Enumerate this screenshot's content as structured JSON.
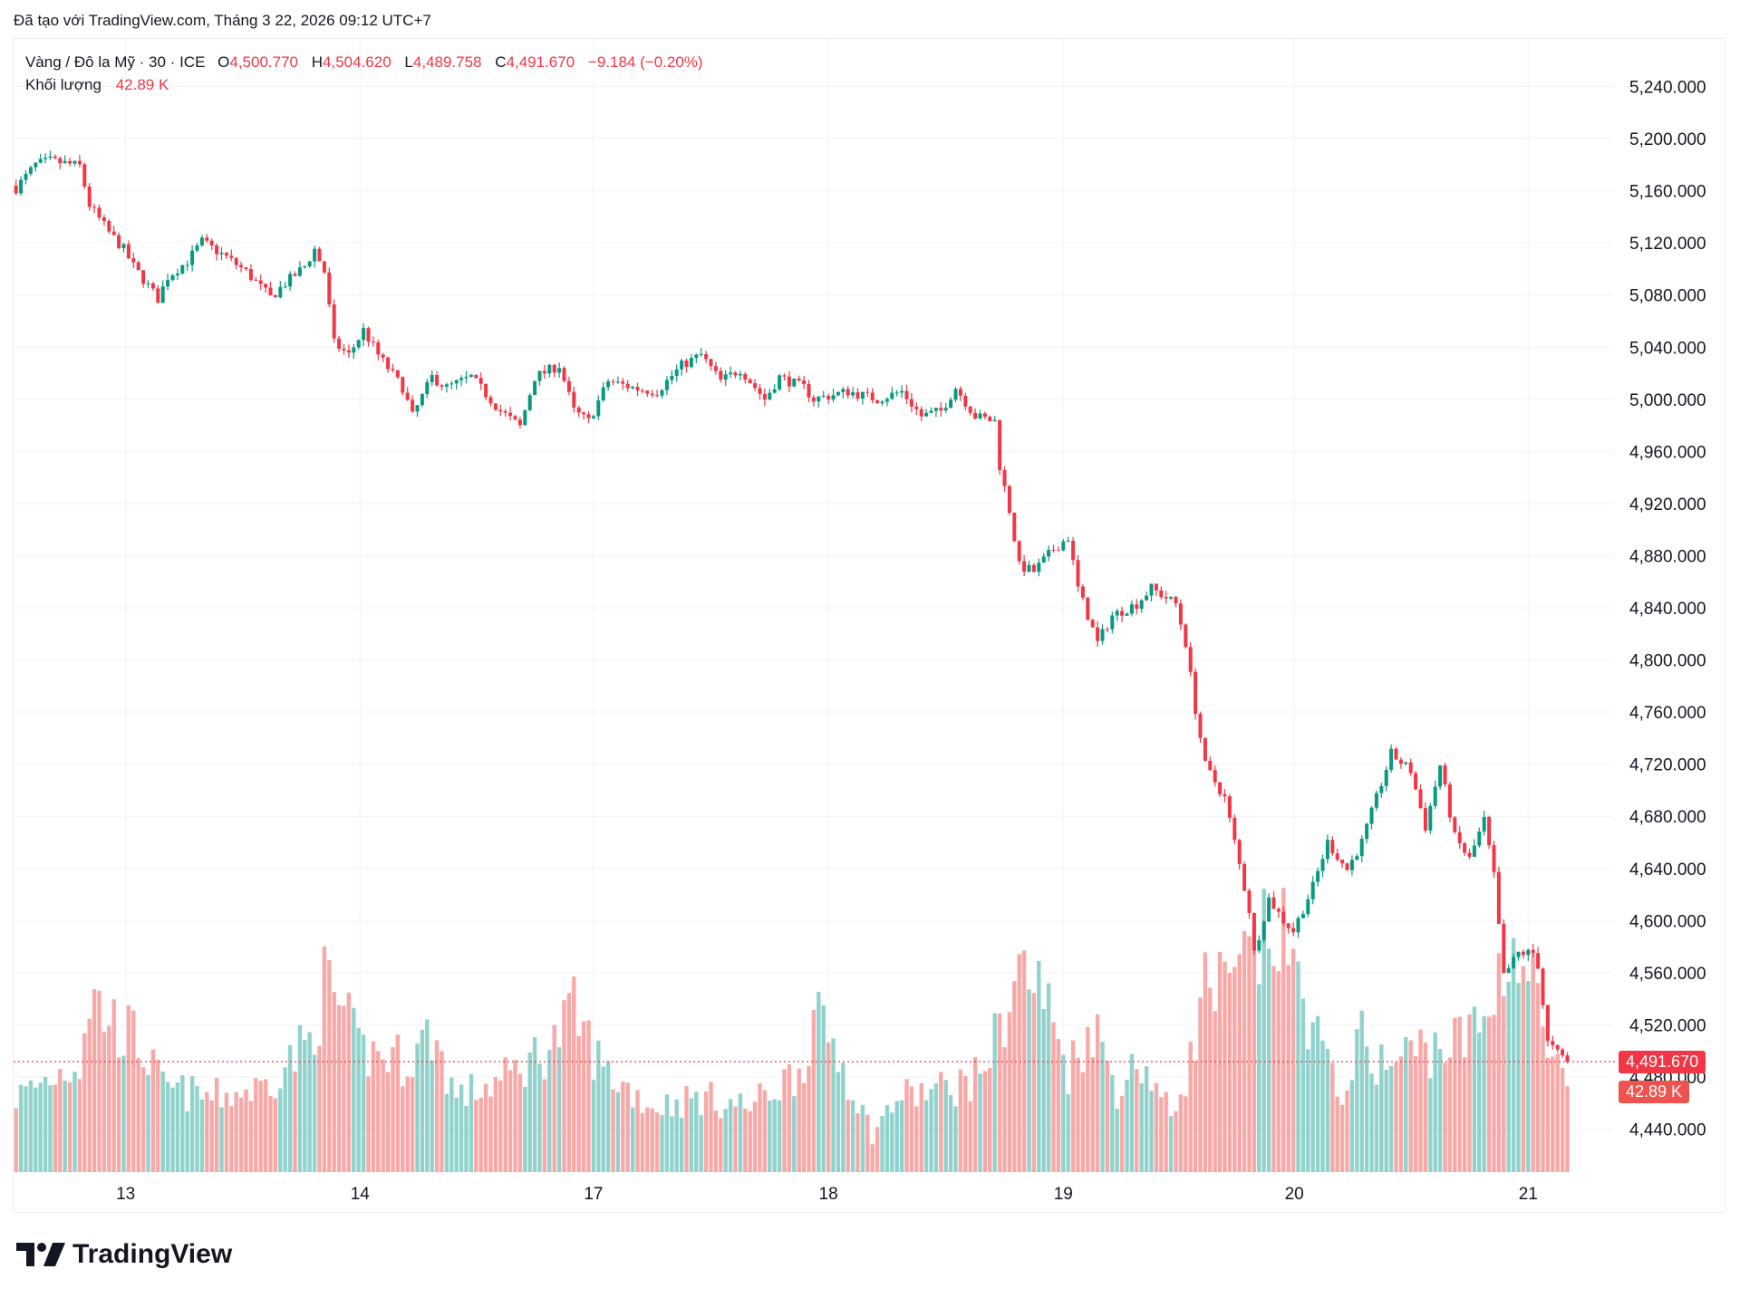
{
  "header": {
    "created": "Đã tạo với TradingView.com, Tháng 3 22, 2026 09:12 UTC+7"
  },
  "legend": {
    "symbol": "Vàng / Đô la Mỹ · 30 · ICE",
    "o_label": "O",
    "o": "4,500.770",
    "h_label": "H",
    "h": "4,504.620",
    "l_label": "L",
    "l": "4,489.758",
    "c_label": "C",
    "c": "4,491.670",
    "change": "−9.184 (−0.20%)",
    "volume_label": "Khối lượng",
    "volume": "42.89 K"
  },
  "price_tag": "4,491.670",
  "volume_tag": "42.89 K",
  "colors": {
    "up": "#089981",
    "down": "#f23645",
    "up_vol": "#92d2cc",
    "down_vol": "#f7a9a7"
  },
  "footer": {
    "brand": "TradingView"
  },
  "chart_data": {
    "type": "candlestick",
    "bar_count": 318,
    "last_close": 4491.67,
    "ylim": [
      4420,
      5260
    ],
    "yticks": [
      4440,
      4480,
      4520,
      4560,
      4600,
      4640,
      4680,
      4720,
      4760,
      4800,
      4840,
      4880,
      4920,
      4960,
      5000,
      5040,
      5080,
      5120,
      5160,
      5200,
      5240
    ],
    "ytick_labels": [
      "4,440.000",
      "4,480.000",
      "4,520.000",
      "4,560.000",
      "4,600.000",
      "4,640.000",
      "4,680.000",
      "4,720.000",
      "4,760.000",
      "4,800.000",
      "4,840.000",
      "4,880.000",
      "4,920.000",
      "4,960.000",
      "5,000.000",
      "5,040.000",
      "5,080.000",
      "5,120.000",
      "5,160.000",
      "5,200.000",
      "5,240.000"
    ],
    "xticks": [
      {
        "bar": 22.4,
        "label": "13"
      },
      {
        "bar": 70.3,
        "label": "14"
      },
      {
        "bar": 118,
        "label": "17"
      },
      {
        "bar": 166,
        "label": "18"
      },
      {
        "bar": 214,
        "label": "19"
      },
      {
        "bar": 261.2,
        "label": "20"
      },
      {
        "bar": 309,
        "label": "21"
      }
    ],
    "close_path": [
      [
        0,
        5162
      ],
      [
        4,
        5180
      ],
      [
        7,
        5183
      ],
      [
        13,
        5179
      ],
      [
        15,
        5149
      ],
      [
        19,
        5128
      ],
      [
        22,
        5115
      ],
      [
        24,
        5102
      ],
      [
        29,
        5077
      ],
      [
        31,
        5094
      ],
      [
        35,
        5106
      ],
      [
        38,
        5121
      ],
      [
        43,
        5109
      ],
      [
        47,
        5098
      ],
      [
        52,
        5078
      ],
      [
        55,
        5089
      ],
      [
        59,
        5102
      ],
      [
        61,
        5115
      ],
      [
        63,
        5098
      ],
      [
        65,
        5043
      ],
      [
        68,
        5034
      ],
      [
        71,
        5053
      ],
      [
        74,
        5034
      ],
      [
        79,
        5009
      ],
      [
        81,
        4987
      ],
      [
        85,
        5017
      ],
      [
        88,
        5009
      ],
      [
        93,
        5017
      ],
      [
        96,
        5004
      ],
      [
        99,
        4991
      ],
      [
        103,
        4979
      ],
      [
        106,
        5017
      ],
      [
        111,
        5026
      ],
      [
        114,
        4991
      ],
      [
        117,
        4983
      ],
      [
        121,
        5014
      ],
      [
        127,
        5008
      ],
      [
        131,
        5006
      ],
      [
        136,
        5026
      ],
      [
        140,
        5034
      ],
      [
        144,
        5014
      ],
      [
        148,
        5023
      ],
      [
        153,
        5000
      ],
      [
        156,
        5017
      ],
      [
        161,
        5009
      ],
      [
        163,
        5000
      ],
      [
        170,
        5006
      ],
      [
        176,
        5000
      ],
      [
        181,
        5006
      ],
      [
        185,
        4987
      ],
      [
        189,
        4991
      ],
      [
        192,
        5009
      ],
      [
        196,
        4987
      ],
      [
        200,
        4983
      ],
      [
        201,
        4949
      ],
      [
        203,
        4915
      ],
      [
        205,
        4872
      ],
      [
        208,
        4868
      ],
      [
        212,
        4885
      ],
      [
        215,
        4894
      ],
      [
        217,
        4855
      ],
      [
        221,
        4813
      ],
      [
        224,
        4834
      ],
      [
        229,
        4843
      ],
      [
        232,
        4855
      ],
      [
        237,
        4843
      ],
      [
        239,
        4813
      ],
      [
        241,
        4762
      ],
      [
        243,
        4719
      ],
      [
        247,
        4694
      ],
      [
        249,
        4660
      ],
      [
        252,
        4608
      ],
      [
        253,
        4575
      ],
      [
        256,
        4617
      ],
      [
        259,
        4600
      ],
      [
        261,
        4592
      ],
      [
        265,
        4626
      ],
      [
        268,
        4660
      ],
      [
        272,
        4639
      ],
      [
        275,
        4660
      ],
      [
        278,
        4694
      ],
      [
        281,
        4728
      ],
      [
        285,
        4715
      ],
      [
        288,
        4672
      ],
      [
        291,
        4719
      ],
      [
        294,
        4664
      ],
      [
        297,
        4647
      ],
      [
        300,
        4677
      ],
      [
        302,
        4634
      ],
      [
        304,
        4557
      ],
      [
        307,
        4575
      ],
      [
        310,
        4575
      ],
      [
        311,
        4566
      ],
      [
        313,
        4506
      ],
      [
        315,
        4498
      ],
      [
        317,
        4491.67
      ]
    ],
    "volume_path_k": [
      [
        0,
        40
      ],
      [
        13,
        60
      ],
      [
        15,
        95
      ],
      [
        20,
        80
      ],
      [
        25,
        70
      ],
      [
        30,
        45
      ],
      [
        40,
        40
      ],
      [
        50,
        45
      ],
      [
        60,
        70
      ],
      [
        63,
        100
      ],
      [
        66,
        90
      ],
      [
        70,
        65
      ],
      [
        80,
        60
      ],
      [
        85,
        75
      ],
      [
        90,
        40
      ],
      [
        100,
        50
      ],
      [
        110,
        70
      ],
      [
        114,
        85
      ],
      [
        120,
        55
      ],
      [
        130,
        35
      ],
      [
        140,
        40
      ],
      [
        150,
        35
      ],
      [
        160,
        55
      ],
      [
        163,
        80
      ],
      [
        167,
        70
      ],
      [
        175,
        20
      ],
      [
        180,
        40
      ],
      [
        190,
        45
      ],
      [
        196,
        50
      ],
      [
        200,
        70
      ],
      [
        205,
        110
      ],
      [
        210,
        95
      ],
      [
        215,
        55
      ],
      [
        220,
        80
      ],
      [
        225,
        45
      ],
      [
        230,
        60
      ],
      [
        236,
        30
      ],
      [
        240,
        60
      ],
      [
        243,
        100
      ],
      [
        248,
        95
      ],
      [
        252,
        115
      ],
      [
        258,
        130
      ],
      [
        265,
        80
      ],
      [
        270,
        40
      ],
      [
        275,
        70
      ],
      [
        280,
        55
      ],
      [
        285,
        65
      ],
      [
        295,
        70
      ],
      [
        300,
        80
      ],
      [
        305,
        125
      ],
      [
        310,
        100
      ],
      [
        313,
        65
      ],
      [
        317,
        42.89
      ]
    ]
  }
}
